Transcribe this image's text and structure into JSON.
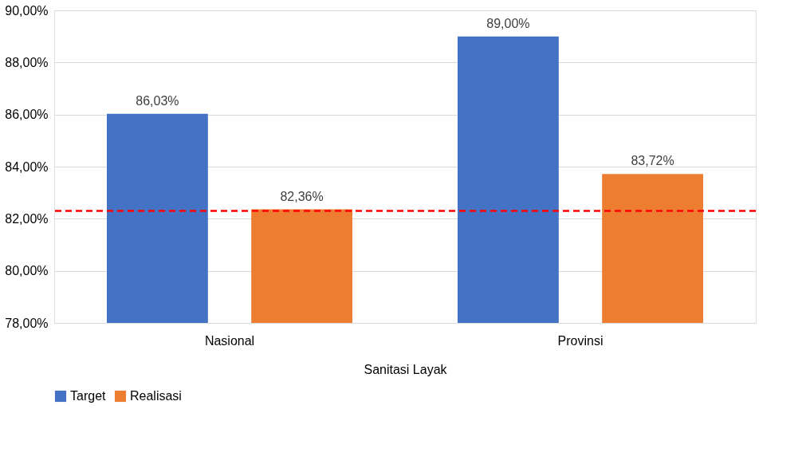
{
  "chart_data": {
    "type": "bar",
    "categories": [
      "Nasional",
      "Provinsi"
    ],
    "xlabel": "Sanitasi Layak",
    "series": [
      {
        "name": "Target",
        "color": "#4472c4",
        "values": [
          86.03,
          89.0
        ],
        "value_labels": [
          "86,03%",
          "89,00%"
        ]
      },
      {
        "name": "Realisasi",
        "color": "#ed7d31",
        "values": [
          82.36,
          83.72
        ],
        "value_labels": [
          "82,36%",
          "83,72%"
        ]
      }
    ],
    "ylim": [
      78,
      90
    ],
    "yticks": [
      {
        "value": 78,
        "label": "78,00%"
      },
      {
        "value": 80,
        "label": "80,00%"
      },
      {
        "value": 82,
        "label": "82,00%"
      },
      {
        "value": 84,
        "label": "84,00%"
      },
      {
        "value": 86,
        "label": "86,00%"
      },
      {
        "value": 88,
        "label": "88,00%"
      },
      {
        "value": 90,
        "label": "90,00%"
      }
    ],
    "ref_lines": [
      {
        "axis": "y",
        "value": 82.3,
        "color": "#ff0000",
        "line_style": "dashed"
      }
    ],
    "grid": "y",
    "legend": "bottom"
  }
}
